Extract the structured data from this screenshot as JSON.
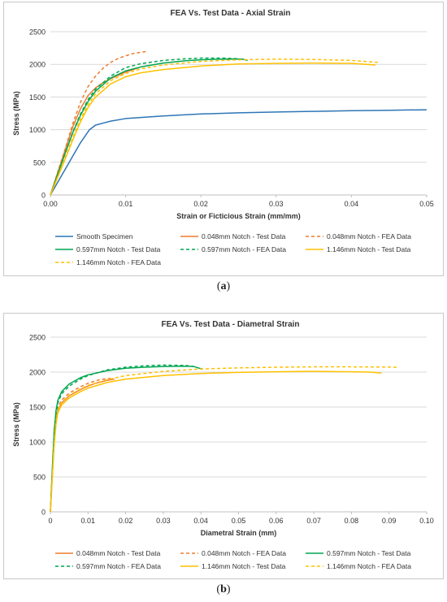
{
  "captions": {
    "a": "a",
    "b": "b"
  },
  "chart_data": [
    {
      "type": "line",
      "title": "FEA Vs. Test Data - Axial Strain",
      "xlabel": "Strain or Ficticious Strain (mm/mm)",
      "ylabel": "Stress (MPa)",
      "xlim": [
        0,
        0.05
      ],
      "ylim": [
        0,
        2500
      ],
      "xticks": [
        0,
        0.01,
        0.02,
        0.03,
        0.04,
        0.05
      ],
      "xtick_labels": [
        "0.00",
        "0.01",
        "0.02",
        "0.03",
        "0.04",
        "0.05"
      ],
      "yticks": [
        0,
        500,
        1000,
        1500,
        2000,
        2500
      ],
      "ytick_labels": [
        "0",
        "500",
        "1000",
        "1500",
        "2000",
        "2500"
      ],
      "grid": "horizontal",
      "legend_position": "bottom",
      "legend_columns": 3,
      "series": [
        {
          "name": "Smooth Specimen",
          "color": "#2e75b6",
          "dash": "solid",
          "points": [
            [
              0,
              0
            ],
            [
              0.002,
              400
            ],
            [
              0.004,
              800
            ],
            [
              0.0052,
              1000
            ],
            [
              0.006,
              1070
            ],
            [
              0.008,
              1130
            ],
            [
              0.01,
              1170
            ],
            [
              0.015,
              1210
            ],
            [
              0.02,
              1240
            ],
            [
              0.025,
              1258
            ],
            [
              0.03,
              1270
            ],
            [
              0.035,
              1280
            ],
            [
              0.04,
              1290
            ],
            [
              0.045,
              1297
            ],
            [
              0.05,
              1305
            ]
          ]
        },
        {
          "name": "0.048mm Notch - Test Data",
          "color": "#ed7d31",
          "dash": "solid",
          "points": [
            [
              0,
              0
            ],
            [
              0.002,
              700
            ],
            [
              0.003,
              1050
            ],
            [
              0.004,
              1320
            ],
            [
              0.005,
              1520
            ],
            [
              0.006,
              1640
            ],
            [
              0.007,
              1720
            ],
            [
              0.008,
              1780
            ],
            [
              0.009,
              1830
            ],
            [
              0.01,
              1880
            ],
            [
              0.011,
              1920
            ],
            [
              0.0118,
              1950
            ]
          ]
        },
        {
          "name": "0.048mm Notch - FEA Data",
          "color": "#ed7d31",
          "dash": "dashed",
          "points": [
            [
              0,
              0
            ],
            [
              0.002,
              720
            ],
            [
              0.003,
              1100
            ],
            [
              0.004,
              1420
            ],
            [
              0.005,
              1660
            ],
            [
              0.006,
              1820
            ],
            [
              0.007,
              1940
            ],
            [
              0.008,
              2030
            ],
            [
              0.009,
              2090
            ],
            [
              0.01,
              2130
            ],
            [
              0.011,
              2165
            ],
            [
              0.012,
              2185
            ],
            [
              0.013,
              2200
            ]
          ]
        },
        {
          "name": "0.597mm Notch - Test Data",
          "color": "#00a651",
          "dash": "solid",
          "points": [
            [
              0,
              0
            ],
            [
              0.002,
              650
            ],
            [
              0.003,
              960
            ],
            [
              0.004,
              1220
            ],
            [
              0.005,
              1430
            ],
            [
              0.006,
              1590
            ],
            [
              0.008,
              1790
            ],
            [
              0.01,
              1900
            ],
            [
              0.012,
              1960
            ],
            [
              0.015,
              2020
            ],
            [
              0.018,
              2055
            ],
            [
              0.02,
              2070
            ],
            [
              0.022,
              2078
            ],
            [
              0.024,
              2082
            ],
            [
              0.0255,
              2080
            ],
            [
              0.0262,
              2060
            ]
          ]
        },
        {
          "name": "0.597mm Notch - FEA Data",
          "color": "#00a651",
          "dash": "dashed",
          "points": [
            [
              0,
              0
            ],
            [
              0.002,
              650
            ],
            [
              0.003,
              970
            ],
            [
              0.004,
              1240
            ],
            [
              0.005,
              1460
            ],
            [
              0.006,
              1620
            ],
            [
              0.008,
              1820
            ],
            [
              0.01,
              1950
            ],
            [
              0.012,
              2010
            ],
            [
              0.015,
              2060
            ],
            [
              0.018,
              2085
            ],
            [
              0.02,
              2095
            ],
            [
              0.023,
              2095
            ],
            [
              0.025,
              2085
            ]
          ]
        },
        {
          "name": "1.146mm Notch - Test Data",
          "color": "#ffc000",
          "dash": "solid",
          "points": [
            [
              0,
              0
            ],
            [
              0.002,
              560
            ],
            [
              0.003,
              850
            ],
            [
              0.004,
              1120
            ],
            [
              0.005,
              1340
            ],
            [
              0.006,
              1500
            ],
            [
              0.008,
              1700
            ],
            [
              0.01,
              1810
            ],
            [
              0.012,
              1870
            ],
            [
              0.015,
              1920
            ],
            [
              0.02,
              1975
            ],
            [
              0.025,
              2005
            ],
            [
              0.03,
              2015
            ],
            [
              0.035,
              2020
            ],
            [
              0.04,
              2015
            ],
            [
              0.0432,
              1990
            ]
          ]
        },
        {
          "name": "1.146mm Notch - FEA Data",
          "color": "#ffc000",
          "dash": "dashed",
          "points": [
            [
              0,
              0
            ],
            [
              0.002,
              580
            ],
            [
              0.003,
              880
            ],
            [
              0.004,
              1160
            ],
            [
              0.005,
              1380
            ],
            [
              0.006,
              1550
            ],
            [
              0.008,
              1750
            ],
            [
              0.01,
              1860
            ],
            [
              0.012,
              1930
            ],
            [
              0.015,
              1990
            ],
            [
              0.02,
              2045
            ],
            [
              0.025,
              2070
            ],
            [
              0.03,
              2080
            ],
            [
              0.035,
              2075
            ],
            [
              0.04,
              2060
            ],
            [
              0.0435,
              2030
            ]
          ]
        }
      ]
    },
    {
      "type": "line",
      "title": "FEA Vs. Test Data - Diametral Strain",
      "xlabel": "Diametral Strain (mm)",
      "ylabel": "Stress (MPa)",
      "xlim": [
        0,
        0.1
      ],
      "ylim": [
        0,
        2500
      ],
      "xticks": [
        0,
        0.01,
        0.02,
        0.03,
        0.04,
        0.05,
        0.06,
        0.07,
        0.08,
        0.09,
        0.1
      ],
      "xtick_labels": [
        "0",
        "0.01",
        "0.02",
        "0.03",
        "0.04",
        "0.05",
        "0.06",
        "0.07",
        "0.08",
        "0.09",
        "0.10"
      ],
      "yticks": [
        0,
        500,
        1000,
        1500,
        2000,
        2500
      ],
      "ytick_labels": [
        "0",
        "500",
        "1000",
        "1500",
        "2000",
        "2500"
      ],
      "grid": "horizontal",
      "legend_position": "bottom",
      "legend_columns": 3,
      "series": [
        {
          "name": "0.048mm Notch - Test Data",
          "color": "#ed7d31",
          "dash": "solid",
          "points": [
            [
              0,
              0
            ],
            [
              0.0005,
              500
            ],
            [
              0.001,
              1000
            ],
            [
              0.0015,
              1300
            ],
            [
              0.002,
              1450
            ],
            [
              0.003,
              1560
            ],
            [
              0.005,
              1660
            ],
            [
              0.008,
              1750
            ],
            [
              0.01,
              1800
            ],
            [
              0.012,
              1840
            ],
            [
              0.015,
              1880
            ],
            [
              0.017,
              1900
            ]
          ]
        },
        {
          "name": "0.048mm Notch - FEA Data",
          "color": "#ed7d31",
          "dash": "dashed",
          "points": [
            [
              0,
              0
            ],
            [
              0.0005,
              560
            ],
            [
              0.001,
              1050
            ],
            [
              0.0015,
              1350
            ],
            [
              0.002,
              1500
            ],
            [
              0.003,
              1600
            ],
            [
              0.005,
              1700
            ],
            [
              0.008,
              1790
            ],
            [
              0.01,
              1840
            ],
            [
              0.013,
              1890
            ],
            [
              0.016,
              1910
            ]
          ]
        },
        {
          "name": "0.597mm Notch - Test Data",
          "color": "#00a651",
          "dash": "solid",
          "points": [
            [
              0,
              0
            ],
            [
              0.0005,
              600
            ],
            [
              0.001,
              1150
            ],
            [
              0.0015,
              1450
            ],
            [
              0.002,
              1600
            ],
            [
              0.003,
              1720
            ],
            [
              0.005,
              1830
            ],
            [
              0.008,
              1920
            ],
            [
              0.01,
              1960
            ],
            [
              0.015,
              2020
            ],
            [
              0.02,
              2055
            ],
            [
              0.025,
              2070
            ],
            [
              0.03,
              2080
            ],
            [
              0.035,
              2085
            ],
            [
              0.038,
              2082
            ],
            [
              0.0405,
              2040
            ]
          ]
        },
        {
          "name": "0.597mm Notch - FEA Data",
          "color": "#00a651",
          "dash": "dashed",
          "points": [
            [
              0,
              0
            ],
            [
              0.0005,
              580
            ],
            [
              0.001,
              1100
            ],
            [
              0.0015,
              1400
            ],
            [
              0.002,
              1560
            ],
            [
              0.003,
              1690
            ],
            [
              0.005,
              1800
            ],
            [
              0.008,
              1900
            ],
            [
              0.01,
              1950
            ],
            [
              0.015,
              2030
            ],
            [
              0.02,
              2070
            ],
            [
              0.025,
              2090
            ],
            [
              0.03,
              2100
            ],
            [
              0.036,
              2095
            ],
            [
              0.038,
              2080
            ]
          ]
        },
        {
          "name": "1.146mm Notch - Test Data",
          "color": "#ffc000",
          "dash": "solid",
          "points": [
            [
              0,
              0
            ],
            [
              0.0005,
              480
            ],
            [
              0.001,
              950
            ],
            [
              0.0015,
              1260
            ],
            [
              0.002,
              1420
            ],
            [
              0.003,
              1530
            ],
            [
              0.005,
              1630
            ],
            [
              0.008,
              1720
            ],
            [
              0.01,
              1770
            ],
            [
              0.015,
              1850
            ],
            [
              0.02,
              1900
            ],
            [
              0.03,
              1950
            ],
            [
              0.04,
              1980
            ],
            [
              0.05,
              1995
            ],
            [
              0.06,
              2005
            ],
            [
              0.07,
              2010
            ],
            [
              0.08,
              2005
            ],
            [
              0.085,
              2000
            ],
            [
              0.088,
              1985
            ]
          ]
        },
        {
          "name": "1.146mm Notch - FEA Data",
          "color": "#ffc000",
          "dash": "dashed",
          "points": [
            [
              0,
              0
            ],
            [
              0.0005,
              500
            ],
            [
              0.001,
              1000
            ],
            [
              0.0015,
              1300
            ],
            [
              0.002,
              1460
            ],
            [
              0.003,
              1570
            ],
            [
              0.005,
              1670
            ],
            [
              0.008,
              1760
            ],
            [
              0.01,
              1810
            ],
            [
              0.015,
              1890
            ],
            [
              0.02,
              1950
            ],
            [
              0.03,
              2010
            ],
            [
              0.04,
              2045
            ],
            [
              0.05,
              2060
            ],
            [
              0.06,
              2070
            ],
            [
              0.07,
              2075
            ],
            [
              0.08,
              2075
            ],
            [
              0.09,
              2072
            ],
            [
              0.092,
              2068
            ]
          ]
        }
      ]
    }
  ]
}
